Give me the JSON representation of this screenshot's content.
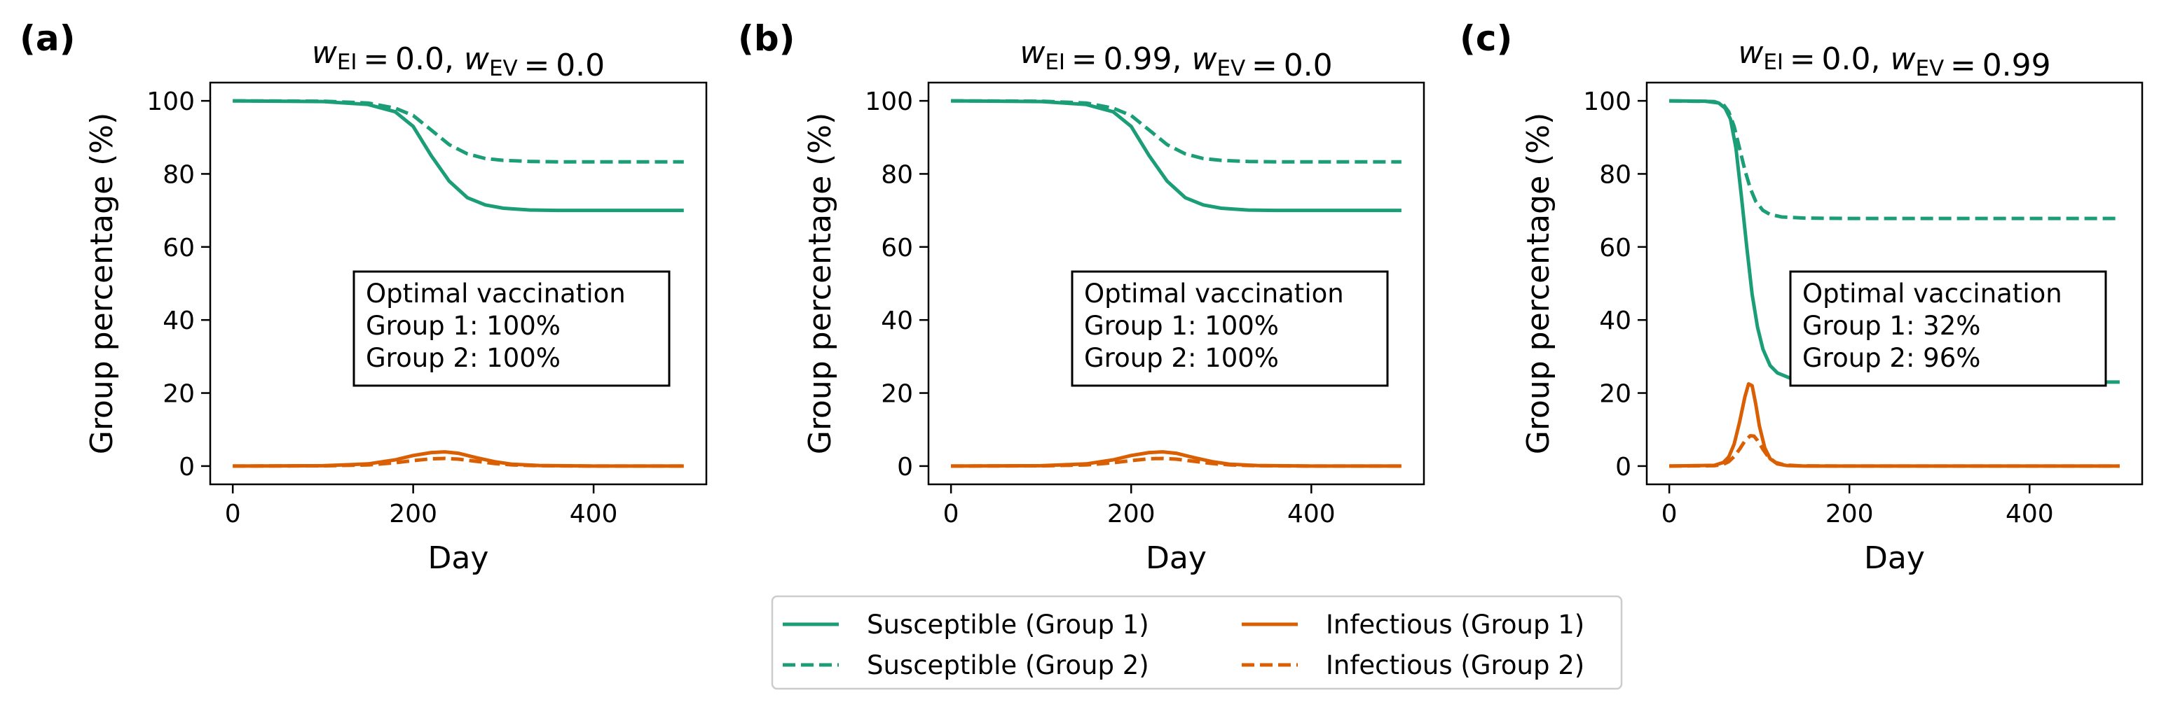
{
  "colors": {
    "susceptible": "#1b9e77",
    "infectious": "#d95f02"
  },
  "legend": {
    "placement": "bottom-center",
    "entries": [
      {
        "label": "Susceptible (Group 1)",
        "series": "s1"
      },
      {
        "label": "Susceptible (Group 2)",
        "series": "s2"
      },
      {
        "label": "Infectious (Group 1)",
        "series": "i1"
      },
      {
        "label": "Infectious (Group 2)",
        "series": "i2"
      }
    ]
  },
  "chart_data": [
    {
      "type": "line",
      "panel_label": "(a)",
      "title": {
        "w_ei": "0.0",
        "w_ev": "0.0"
      },
      "xlabel": "Day",
      "ylabel": "Group percentage (%)",
      "xlim": [
        -25,
        525
      ],
      "ylim": [
        -5,
        105
      ],
      "xticks": [
        0,
        200,
        400
      ],
      "yticks": [
        0,
        20,
        40,
        60,
        80,
        100
      ],
      "grid": false,
      "annotation": [
        "Optimal vaccination",
        "Group 1: 100%",
        "Group 2: 100%"
      ],
      "series": [
        {
          "id": "s1",
          "name": "Susceptible (Group 1)",
          "color": "susceptible",
          "dash": false,
          "x": [
            0,
            100,
            150,
            180,
            200,
            220,
            240,
            260,
            280,
            300,
            330,
            360,
            400,
            450,
            500
          ],
          "y": [
            100,
            99.8,
            99,
            97,
            93,
            85,
            78,
            73.5,
            71.5,
            70.6,
            70.1,
            70,
            70,
            70,
            70
          ]
        },
        {
          "id": "s2",
          "name": "Susceptible (Group 2)",
          "color": "susceptible",
          "dash": true,
          "x": [
            0,
            100,
            150,
            180,
            200,
            220,
            240,
            260,
            280,
            300,
            330,
            360,
            400,
            450,
            500
          ],
          "y": [
            100,
            99.9,
            99.4,
            98,
            96,
            92,
            88,
            85.5,
            84.2,
            83.7,
            83.4,
            83.3,
            83.3,
            83.3,
            83.3
          ]
        },
        {
          "id": "i1",
          "name": "Infectious (Group 1)",
          "color": "infectious",
          "dash": false,
          "x": [
            0,
            100,
            150,
            180,
            200,
            220,
            235,
            250,
            270,
            290,
            310,
            340,
            400,
            500
          ],
          "y": [
            0,
            0.1,
            0.6,
            1.7,
            2.9,
            3.7,
            3.9,
            3.5,
            2.3,
            1.2,
            0.5,
            0.15,
            0,
            0
          ]
        },
        {
          "id": "i2",
          "name": "Infectious (Group 2)",
          "color": "infectious",
          "dash": true,
          "x": [
            0,
            100,
            150,
            180,
            200,
            220,
            235,
            250,
            270,
            290,
            310,
            340,
            400,
            500
          ],
          "y": [
            0,
            0.05,
            0.3,
            0.9,
            1.5,
            2,
            2.1,
            1.9,
            1.3,
            0.7,
            0.3,
            0.1,
            0,
            0
          ]
        }
      ]
    },
    {
      "type": "line",
      "panel_label": "(b)",
      "title": {
        "w_ei": "0.99",
        "w_ev": "0.0"
      },
      "xlabel": "Day",
      "ylabel": "Group percentage (%)",
      "xlim": [
        -25,
        525
      ],
      "ylim": [
        -5,
        105
      ],
      "xticks": [
        0,
        200,
        400
      ],
      "yticks": [
        0,
        20,
        40,
        60,
        80,
        100
      ],
      "grid": false,
      "annotation": [
        "Optimal vaccination",
        "Group 1: 100%",
        "Group 2: 100%"
      ],
      "series": [
        {
          "id": "s1",
          "name": "Susceptible (Group 1)",
          "color": "susceptible",
          "dash": false,
          "x": [
            0,
            100,
            150,
            180,
            200,
            220,
            240,
            260,
            280,
            300,
            330,
            360,
            400,
            450,
            500
          ],
          "y": [
            100,
            99.8,
            99,
            97,
            93,
            85,
            78,
            73.5,
            71.5,
            70.6,
            70.1,
            70,
            70,
            70,
            70
          ]
        },
        {
          "id": "s2",
          "name": "Susceptible (Group 2)",
          "color": "susceptible",
          "dash": true,
          "x": [
            0,
            100,
            150,
            180,
            200,
            220,
            240,
            260,
            280,
            300,
            330,
            360,
            400,
            450,
            500
          ],
          "y": [
            100,
            99.9,
            99.4,
            98,
            96,
            92,
            88,
            85.5,
            84.2,
            83.7,
            83.4,
            83.3,
            83.3,
            83.3,
            83.3
          ]
        },
        {
          "id": "i1",
          "name": "Infectious (Group 1)",
          "color": "infectious",
          "dash": false,
          "x": [
            0,
            100,
            150,
            180,
            200,
            220,
            235,
            250,
            270,
            290,
            310,
            340,
            400,
            500
          ],
          "y": [
            0,
            0.1,
            0.6,
            1.7,
            2.9,
            3.7,
            3.9,
            3.5,
            2.3,
            1.2,
            0.5,
            0.15,
            0,
            0
          ]
        },
        {
          "id": "i2",
          "name": "Infectious (Group 2)",
          "color": "infectious",
          "dash": true,
          "x": [
            0,
            100,
            150,
            180,
            200,
            220,
            235,
            250,
            270,
            290,
            310,
            340,
            400,
            500
          ],
          "y": [
            0,
            0.05,
            0.3,
            0.9,
            1.5,
            2,
            2.1,
            1.9,
            1.3,
            0.7,
            0.3,
            0.1,
            0,
            0
          ]
        }
      ]
    },
    {
      "type": "line",
      "panel_label": "(c)",
      "title": {
        "w_ei": "0.0",
        "w_ev": "0.99"
      },
      "xlabel": "Day",
      "ylabel": "Group percentage (%)",
      "xlim": [
        -25,
        525
      ],
      "ylim": [
        -5,
        105
      ],
      "xticks": [
        0,
        200,
        400
      ],
      "yticks": [
        0,
        20,
        40,
        60,
        80,
        100
      ],
      "grid": false,
      "annotation": [
        "Optimal vaccination",
        "Group 1: 32%",
        "Group 2: 96%"
      ],
      "series": [
        {
          "id": "s1",
          "name": "Susceptible (Group 1)",
          "color": "susceptible",
          "dash": false,
          "x": [
            0,
            40,
            55,
            62,
            68,
            74,
            80,
            86,
            92,
            98,
            104,
            112,
            120,
            135,
            160,
            200,
            300,
            500
          ],
          "y": [
            100,
            99.9,
            99.4,
            98,
            95,
            87,
            74,
            60,
            47,
            38,
            32,
            27.5,
            25.5,
            24,
            23.3,
            23,
            23,
            23
          ]
        },
        {
          "id": "s2",
          "name": "Susceptible (Group 2)",
          "color": "susceptible",
          "dash": true,
          "x": [
            0,
            50,
            60,
            66,
            72,
            78,
            84,
            90,
            96,
            104,
            112,
            125,
            150,
            200,
            300,
            500
          ],
          "y": [
            100,
            99.8,
            99,
            97,
            93,
            87,
            81,
            76,
            72.5,
            70,
            68.9,
            68.2,
            67.9,
            67.8,
            67.8,
            67.8
          ]
        },
        {
          "id": "i1",
          "name": "Infectious (Group 1)",
          "color": "infectious",
          "dash": false,
          "x": [
            0,
            50,
            60,
            66,
            72,
            78,
            84,
            88,
            92,
            96,
            100,
            106,
            112,
            120,
            130,
            150,
            200,
            500
          ],
          "y": [
            0,
            0.2,
            1,
            2.5,
            6,
            12,
            19,
            22.5,
            22,
            17,
            11,
            5,
            2,
            0.6,
            0.15,
            0,
            0,
            0
          ]
        },
        {
          "id": "i2",
          "name": "Infectious (Group 2)",
          "color": "infectious",
          "dash": true,
          "x": [
            0,
            50,
            60,
            66,
            72,
            78,
            84,
            90,
            94,
            98,
            104,
            110,
            118,
            128,
            145,
            200,
            500
          ],
          "y": [
            0,
            0.1,
            0.5,
            1.2,
            2.6,
            4.6,
            6.9,
            8.3,
            8.2,
            7,
            4.6,
            2.5,
            1,
            0.3,
            0.05,
            0,
            0
          ]
        }
      ]
    }
  ]
}
